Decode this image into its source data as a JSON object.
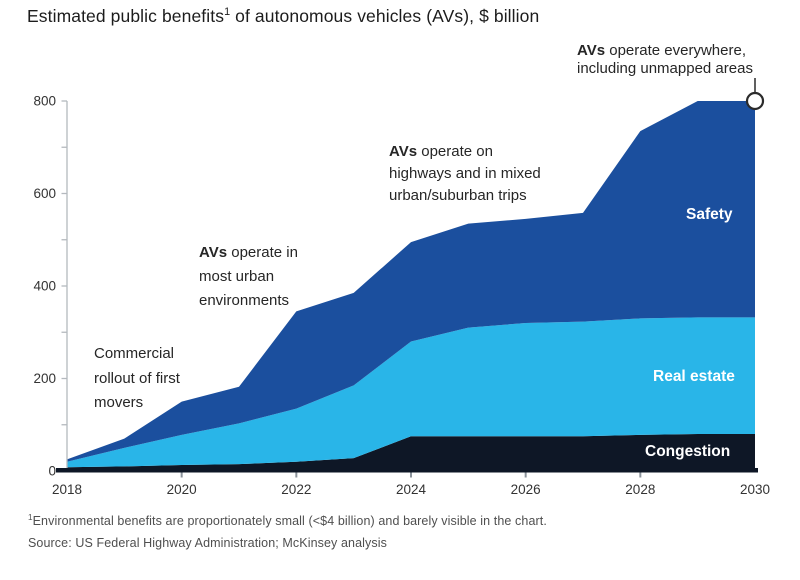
{
  "title": {
    "pre": "Estimated public benefits",
    "sup": "1",
    "post": " of autonomous vehicles (AVs), $ billion"
  },
  "footnote": {
    "sup": "1",
    "text": "Environmental benefits are proportionately small (<$4 billion) and barely visible in the chart."
  },
  "source": "Source: US Federal Highway Administration; McKinsey analysis",
  "chart_data": {
    "type": "area",
    "stacked": true,
    "title": "Estimated public benefits of autonomous vehicles (AVs), $ billion",
    "xlabel": "",
    "ylabel": "$ billion",
    "x": [
      2018,
      2019,
      2020,
      2021,
      2022,
      2023,
      2024,
      2025,
      2026,
      2027,
      2028,
      2029,
      2030
    ],
    "series": [
      {
        "name": "Congestion",
        "color": "#0E1726",
        "values": [
          8,
          10,
          13,
          15,
          20,
          28,
          75,
          75,
          75,
          75,
          78,
          80,
          80
        ]
      },
      {
        "name": "Real estate",
        "color": "#29B5E8",
        "values": [
          12,
          40,
          65,
          88,
          115,
          157,
          205,
          235,
          245,
          248,
          252,
          252,
          252
        ]
      },
      {
        "name": "Safety",
        "color": "#1B4F9E",
        "values": [
          5,
          20,
          72,
          79,
          210,
          200,
          215,
          225,
          225,
          235,
          405,
          468,
          468
        ]
      }
    ],
    "stacked_totals": [
      25,
      70,
      150,
      182,
      345,
      385,
      495,
      535,
      545,
      558,
      735,
      800,
      800
    ],
    "ylim": [
      0,
      800
    ],
    "y_minor_step": 100,
    "y_tick_labels": [
      0,
      200,
      400,
      600,
      800
    ],
    "x_tick_labels": [
      2018,
      2020,
      2022,
      2024,
      2026,
      2028,
      2030
    ],
    "grid": false,
    "legend_position": "labels-inside-areas",
    "marker": {
      "x": 2030,
      "y": 800
    },
    "annotations": [
      {
        "id": "commercial-rollout",
        "lines": [
          {
            "text": "Commercial"
          },
          {
            "text": "rollout of first"
          },
          {
            "text": "movers"
          }
        ]
      },
      {
        "id": "avs-urban",
        "lines": [
          {
            "bold": "AVs",
            "text": " operate in"
          },
          {
            "text": "most urban"
          },
          {
            "text": "environments"
          }
        ]
      },
      {
        "id": "avs-highways",
        "lines": [
          {
            "bold": "AVs",
            "text": " operate on"
          },
          {
            "text": "highways and in mixed"
          },
          {
            "text": "urban/suburban trips"
          }
        ]
      },
      {
        "id": "avs-everywhere",
        "lines": [
          {
            "bold": "AVs",
            "text": " operate everywhere,"
          },
          {
            "text": "including unmapped areas"
          }
        ]
      }
    ]
  }
}
